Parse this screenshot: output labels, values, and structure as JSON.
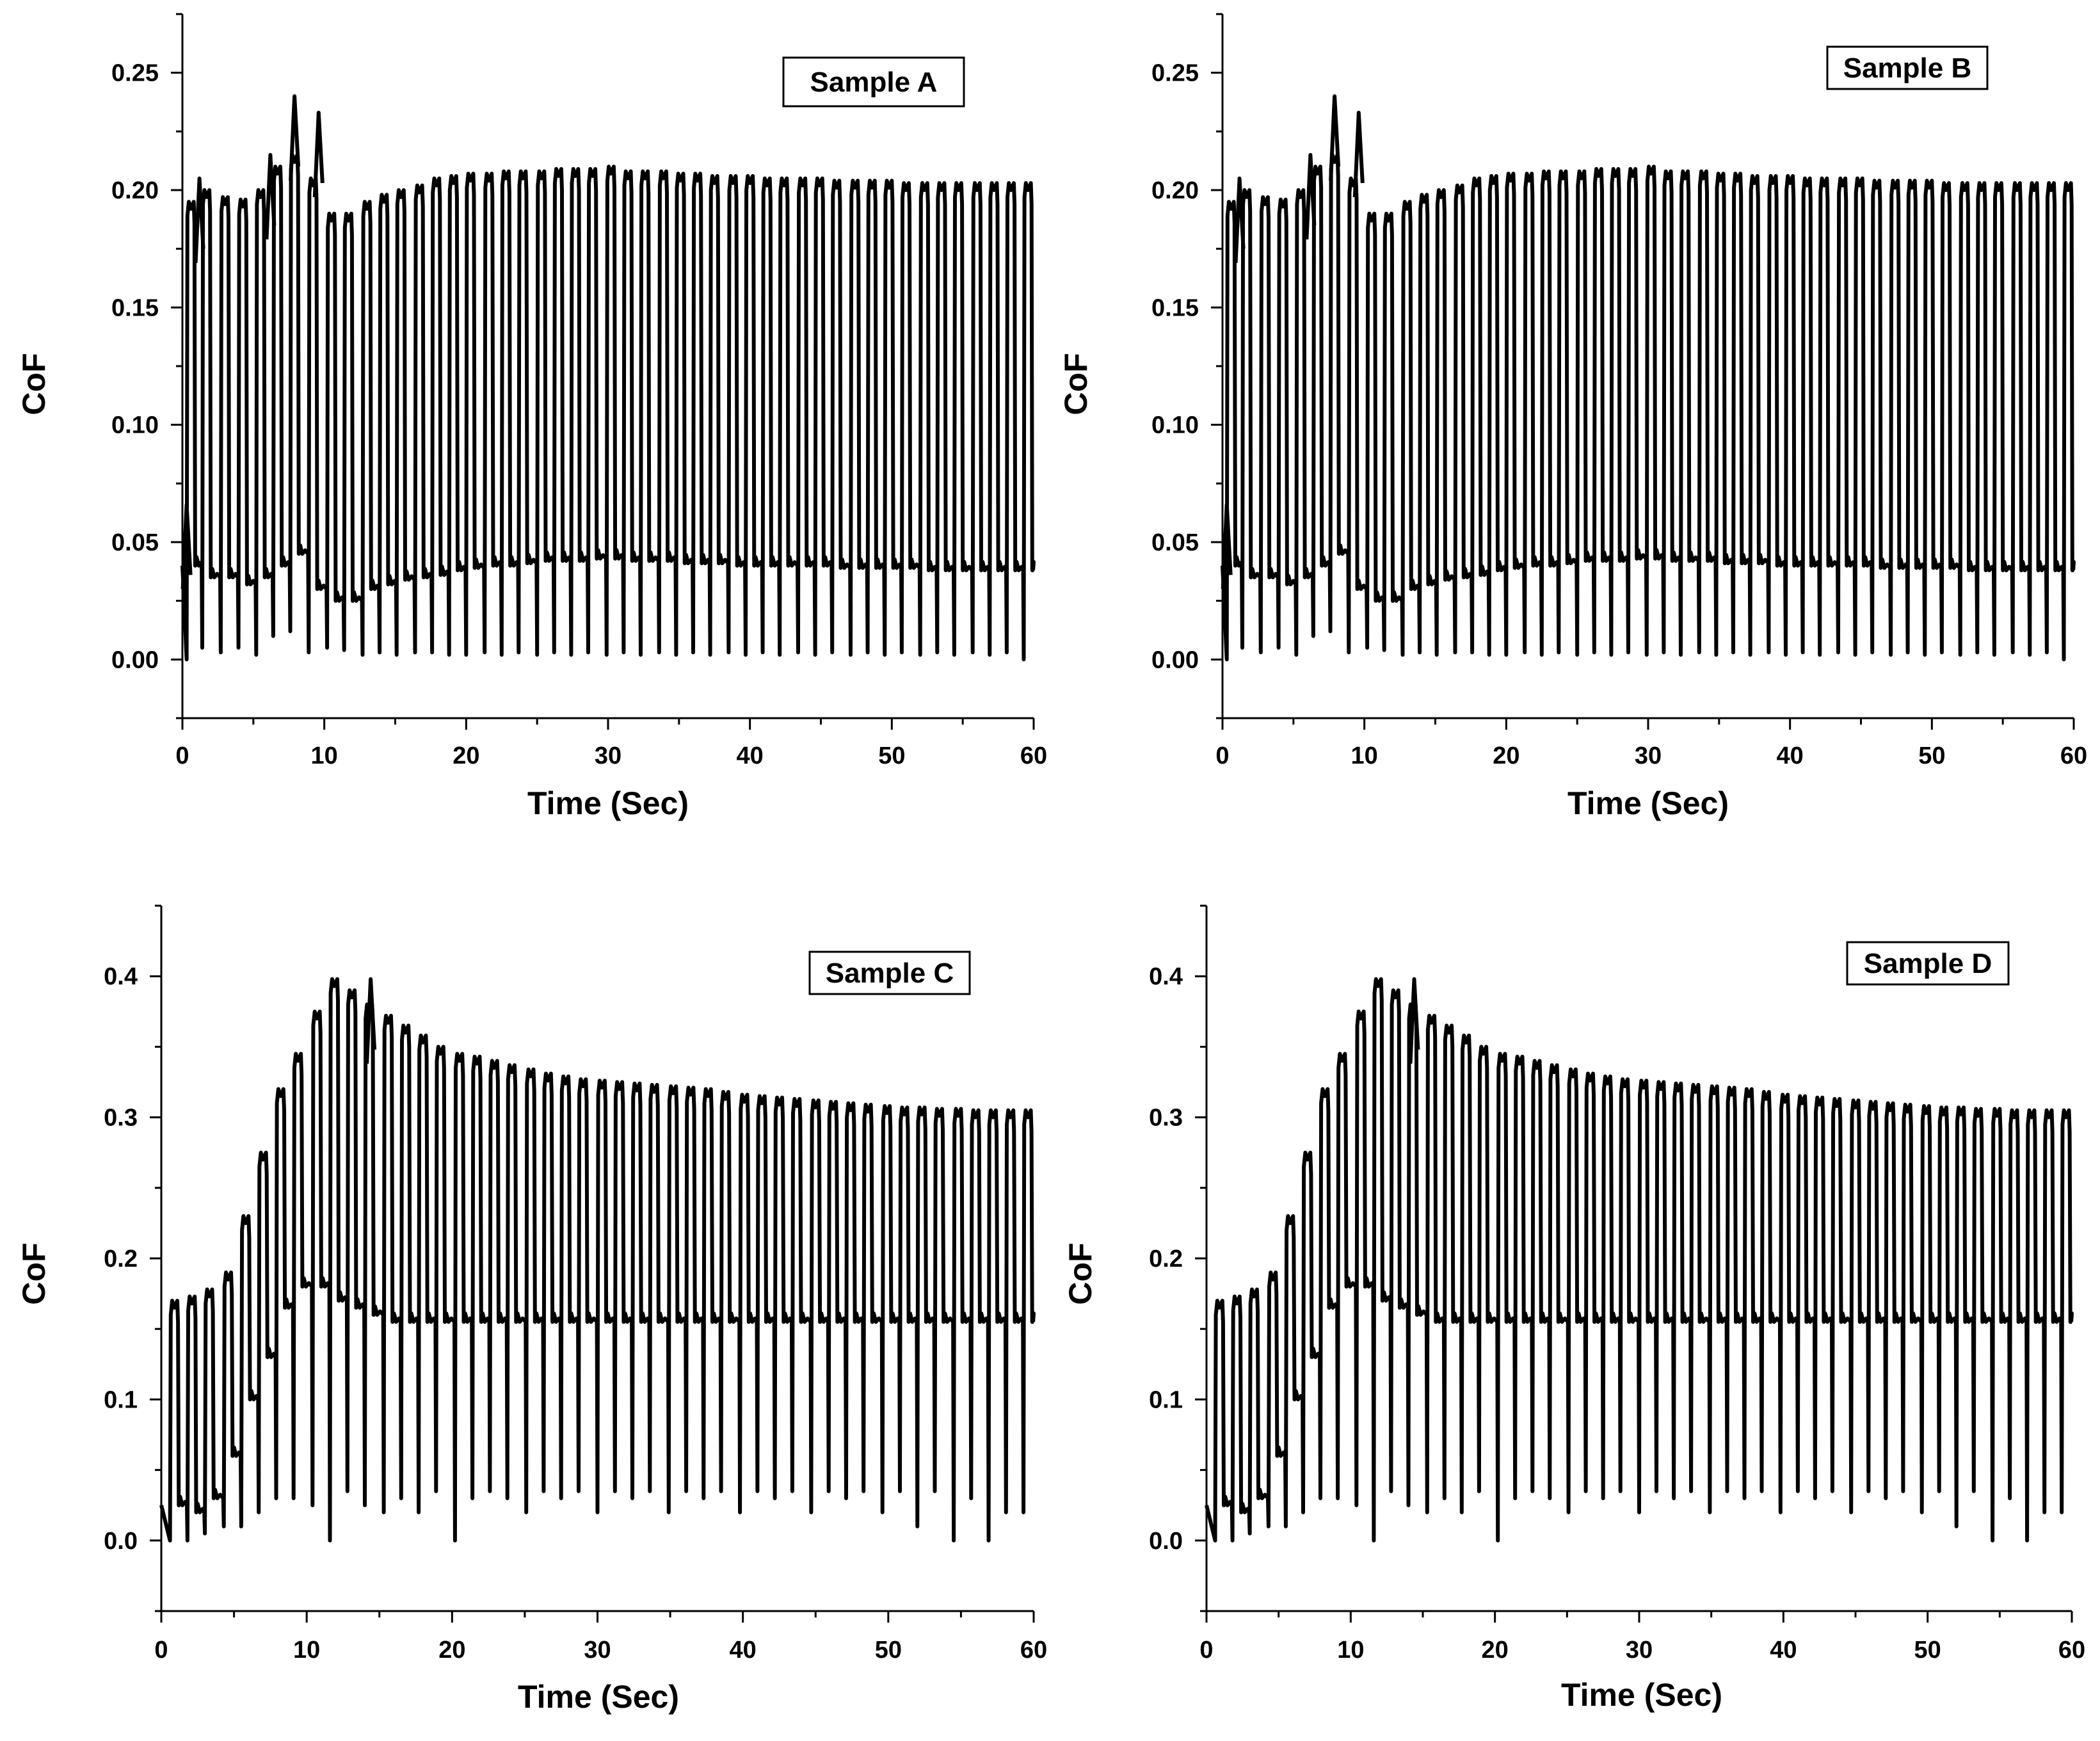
{
  "colors": {
    "line": "#000000",
    "background": "#ffffff",
    "axis": "#000000"
  },
  "chart_data": [
    {
      "type": "line",
      "title": "Sample A",
      "xlabel": "Time (Sec)",
      "ylabel": "CoF",
      "xlim": [
        0,
        60
      ],
      "ylim": [
        -0.025,
        0.275
      ],
      "xticks": [
        0,
        10,
        20,
        30,
        40,
        50,
        60
      ],
      "xtick_labels": [
        "0",
        "10",
        "20",
        "30",
        "40",
        "50",
        "60"
      ],
      "yticks": [
        0.0,
        0.05,
        0.1,
        0.15,
        0.2,
        0.25
      ],
      "ytick_labels": [
        "0.00",
        "0.05",
        "0.10",
        "0.15",
        "0.20",
        "0.25"
      ],
      "series": [
        {
          "name": "Sample A",
          "cycle_period_sec": 1.22,
          "cycle_start_times": [
            0.3,
            1.4,
            2.7,
            3.95,
            5.2,
            6.4,
            7.6,
            8.9,
            10.2,
            11.4,
            12.7,
            13.9,
            15.1,
            16.4,
            17.6,
            18.8,
            20.0,
            21.3,
            22.5,
            23.7,
            25.0,
            26.2,
            27.4,
            28.6,
            29.9,
            31.1,
            32.3,
            33.6,
            34.8,
            36.0,
            37.2,
            38.5,
            39.7,
            40.9,
            42.1,
            43.4,
            44.6,
            45.8,
            47.1,
            48.3,
            49.5,
            50.7,
            52.0,
            53.2,
            54.4,
            55.7,
            56.9,
            58.1,
            59.3
          ],
          "cycle_high_values": [
            0.195,
            0.2,
            0.197,
            0.196,
            0.2,
            0.21,
            0.215,
            0.205,
            0.19,
            0.19,
            0.195,
            0.198,
            0.2,
            0.202,
            0.205,
            0.206,
            0.207,
            0.207,
            0.208,
            0.208,
            0.208,
            0.209,
            0.209,
            0.209,
            0.21,
            0.208,
            0.208,
            0.208,
            0.207,
            0.207,
            0.206,
            0.206,
            0.206,
            0.205,
            0.205,
            0.205,
            0.205,
            0.204,
            0.204,
            0.204,
            0.204,
            0.203,
            0.203,
            0.203,
            0.203,
            0.203,
            0.203,
            0.203,
            0.203
          ],
          "cycle_low_values": [
            0.04,
            0.035,
            0.035,
            0.032,
            0.035,
            0.04,
            0.045,
            0.03,
            0.025,
            0.025,
            0.03,
            0.032,
            0.034,
            0.035,
            0.036,
            0.038,
            0.039,
            0.04,
            0.04,
            0.041,
            0.042,
            0.042,
            0.042,
            0.043,
            0.043,
            0.042,
            0.042,
            0.042,
            0.041,
            0.041,
            0.041,
            0.04,
            0.04,
            0.04,
            0.04,
            0.04,
            0.04,
            0.039,
            0.039,
            0.039,
            0.039,
            0.039,
            0.038,
            0.038,
            0.038,
            0.038,
            0.038,
            0.038,
            0.038
          ],
          "cycle_min_values": [
            0.0,
            0.005,
            0.003,
            0.005,
            0.002,
            0.01,
            0.012,
            0.003,
            0.005,
            0.004,
            0.002,
            0.003,
            0.002,
            0.003,
            0.003,
            0.002,
            0.002,
            0.003,
            0.002,
            0.003,
            0.002,
            0.003,
            0.002,
            0.003,
            0.002,
            0.003,
            0.002,
            0.003,
            0.002,
            0.003,
            0.002,
            0.003,
            0.002,
            0.003,
            0.002,
            0.003,
            0.002,
            0.003,
            0.002,
            0.003,
            0.002,
            0.003,
            0.002,
            0.003,
            0.002,
            0.003,
            0.002,
            0.003,
            0.0
          ],
          "peak_events": [
            [
              1.2,
              0.205
            ],
            [
              6.2,
              0.215
            ],
            [
              7.9,
              0.24
            ],
            [
              9.6,
              0.233
            ],
            [
              0.3,
              0.066
            ]
          ]
        }
      ]
    },
    {
      "type": "line",
      "title": "Sample B",
      "xlabel": "Time (Sec)",
      "ylabel": "CoF",
      "xlim": [
        0,
        60
      ],
      "ylim": [
        -0.025,
        0.275
      ],
      "xticks": [
        0,
        10,
        20,
        30,
        40,
        50,
        60
      ],
      "xtick_labels": [
        "0",
        "10",
        "20",
        "30",
        "40",
        "50",
        "60"
      ],
      "yticks": [
        0.0,
        0.05,
        0.1,
        0.15,
        0.2,
        0.25
      ],
      "ytick_labels": [
        "0.00",
        "0.05",
        "0.10",
        "0.15",
        "0.20",
        "0.25"
      ],
      "series": [
        {
          "name": "Sample B",
          "cycle_period_sec": 1.22,
          "cycle_start_times": [
            0.3,
            1.4,
            2.7,
            3.95,
            5.2,
            6.4,
            7.6,
            8.9,
            10.2,
            11.4,
            12.7,
            13.9,
            15.1,
            16.4,
            17.6,
            18.8,
            20.0,
            21.3,
            22.5,
            23.7,
            25.0,
            26.2,
            27.4,
            28.6,
            29.9,
            31.1,
            32.3,
            33.6,
            34.8,
            36.0,
            37.2,
            38.5,
            39.7,
            40.9,
            42.1,
            43.4,
            44.6,
            45.8,
            47.1,
            48.3,
            49.5,
            50.7,
            52.0,
            53.2,
            54.4,
            55.7,
            56.9,
            58.1,
            59.3
          ],
          "cycle_high_values": [
            0.195,
            0.2,
            0.197,
            0.196,
            0.2,
            0.21,
            0.215,
            0.205,
            0.19,
            0.19,
            0.195,
            0.198,
            0.2,
            0.202,
            0.205,
            0.206,
            0.207,
            0.207,
            0.208,
            0.208,
            0.208,
            0.209,
            0.209,
            0.209,
            0.21,
            0.208,
            0.208,
            0.208,
            0.207,
            0.207,
            0.206,
            0.206,
            0.206,
            0.205,
            0.205,
            0.205,
            0.205,
            0.204,
            0.204,
            0.204,
            0.204,
            0.203,
            0.203,
            0.203,
            0.203,
            0.203,
            0.203,
            0.203,
            0.203
          ],
          "cycle_low_values": [
            0.04,
            0.035,
            0.035,
            0.032,
            0.035,
            0.04,
            0.045,
            0.03,
            0.025,
            0.025,
            0.03,
            0.032,
            0.034,
            0.035,
            0.036,
            0.038,
            0.039,
            0.04,
            0.04,
            0.041,
            0.042,
            0.042,
            0.042,
            0.043,
            0.043,
            0.042,
            0.042,
            0.042,
            0.041,
            0.041,
            0.041,
            0.04,
            0.04,
            0.04,
            0.04,
            0.04,
            0.04,
            0.039,
            0.039,
            0.039,
            0.039,
            0.039,
            0.038,
            0.038,
            0.038,
            0.038,
            0.038,
            0.038,
            0.038
          ],
          "cycle_min_values": [
            0.0,
            0.005,
            0.003,
            0.005,
            0.002,
            0.01,
            0.012,
            0.003,
            0.005,
            0.004,
            0.002,
            0.003,
            0.002,
            0.003,
            0.003,
            0.002,
            0.002,
            0.003,
            0.002,
            0.003,
            0.002,
            0.003,
            0.002,
            0.003,
            0.002,
            0.003,
            0.002,
            0.003,
            0.002,
            0.003,
            0.002,
            0.003,
            0.002,
            0.003,
            0.002,
            0.003,
            0.002,
            0.003,
            0.002,
            0.003,
            0.002,
            0.003,
            0.002,
            0.003,
            0.002,
            0.003,
            0.002,
            0.003,
            0.0
          ],
          "peak_events": [
            [
              1.2,
              0.205
            ],
            [
              6.2,
              0.215
            ],
            [
              7.9,
              0.24
            ],
            [
              9.6,
              0.233
            ],
            [
              0.3,
              0.066
            ]
          ]
        }
      ]
    },
    {
      "type": "line",
      "title": "Sample C",
      "xlabel": "Time (Sec)",
      "ylabel": "CoF",
      "xlim": [
        0,
        60
      ],
      "ylim": [
        -0.05,
        0.45
      ],
      "xticks": [
        0,
        10,
        20,
        30,
        40,
        50,
        60
      ],
      "xtick_labels": [
        "0",
        "10",
        "20",
        "30",
        "40",
        "50",
        "60"
      ],
      "yticks": [
        0.0,
        0.1,
        0.2,
        0.3,
        0.4
      ],
      "ytick_labels": [
        "0.0",
        "0.1",
        "0.2",
        "0.3",
        "0.4"
      ],
      "series": [
        {
          "name": "Sample C",
          "cycle_period_sec": 1.22,
          "cycle_start_times": [
            0.6,
            1.8,
            3.0,
            4.3,
            5.5,
            6.7,
            7.9,
            9.1,
            10.4,
            11.6,
            12.8,
            14.0,
            15.3,
            16.5,
            17.7,
            18.9,
            20.2,
            21.4,
            22.6,
            23.8,
            25.1,
            26.3,
            27.5,
            28.7,
            30.0,
            31.2,
            32.4,
            33.6,
            34.9,
            36.1,
            37.3,
            38.5,
            39.8,
            41.0,
            42.2,
            43.4,
            44.7,
            45.9,
            47.1,
            48.3,
            49.6,
            50.8,
            52.0,
            53.2,
            54.5,
            55.7,
            56.9,
            58.1,
            59.3
          ],
          "cycle_high_values": [
            0.17,
            0.173,
            0.178,
            0.19,
            0.23,
            0.275,
            0.32,
            0.345,
            0.375,
            0.398,
            0.39,
            0.38,
            0.372,
            0.365,
            0.358,
            0.35,
            0.345,
            0.343,
            0.34,
            0.337,
            0.334,
            0.331,
            0.329,
            0.327,
            0.326,
            0.325,
            0.324,
            0.323,
            0.322,
            0.321,
            0.32,
            0.318,
            0.316,
            0.315,
            0.314,
            0.313,
            0.312,
            0.311,
            0.31,
            0.309,
            0.308,
            0.307,
            0.307,
            0.306,
            0.306,
            0.305,
            0.305,
            0.305,
            0.305
          ],
          "cycle_low_values": [
            0.025,
            0.02,
            0.03,
            0.06,
            0.1,
            0.13,
            0.165,
            0.18,
            0.18,
            0.17,
            0.165,
            0.16,
            0.155,
            0.155,
            0.155,
            0.155,
            0.155,
            0.155,
            0.155,
            0.155,
            0.155,
            0.155,
            0.155,
            0.155,
            0.155,
            0.155,
            0.155,
            0.155,
            0.155,
            0.155,
            0.155,
            0.155,
            0.155,
            0.155,
            0.155,
            0.155,
            0.155,
            0.155,
            0.155,
            0.155,
            0.155,
            0.155,
            0.155,
            0.155,
            0.155,
            0.155,
            0.155,
            0.155,
            0.155
          ],
          "cycle_min_values": [
            0.0,
            0.0,
            0.005,
            0.01,
            0.01,
            0.02,
            0.03,
            0.03,
            0.025,
            0.0,
            0.035,
            0.025,
            0.02,
            0.03,
            0.02,
            0.035,
            0.0,
            0.03,
            0.035,
            0.03,
            0.02,
            0.035,
            0.03,
            0.035,
            0.02,
            0.035,
            0.03,
            0.035,
            0.02,
            0.035,
            0.03,
            0.035,
            0.02,
            0.035,
            0.03,
            0.035,
            0.02,
            0.035,
            0.03,
            0.035,
            0.02,
            0.035,
            0.01,
            0.035,
            0.0,
            0.03,
            0.0,
            0.02,
            0.02
          ],
          "peak_events": [
            [
              14.4,
              0.398
            ]
          ]
        }
      ]
    },
    {
      "type": "line",
      "title": "Sample D",
      "xlabel": "Time (Sec)",
      "ylabel": "CoF",
      "xlim": [
        0,
        60
      ],
      "ylim": [
        -0.05,
        0.45
      ],
      "xticks": [
        0,
        10,
        20,
        30,
        40,
        50,
        60
      ],
      "xtick_labels": [
        "0",
        "10",
        "20",
        "30",
        "40",
        "50",
        "60"
      ],
      "yticks": [
        0.0,
        0.1,
        0.2,
        0.3,
        0.4
      ],
      "ytick_labels": [
        "0.0",
        "0.1",
        "0.2",
        "0.3",
        "0.4"
      ],
      "series": [
        {
          "name": "Sample D",
          "cycle_period_sec": 1.22,
          "cycle_start_times": [
            0.6,
            1.8,
            3.0,
            4.3,
            5.5,
            6.7,
            7.9,
            9.1,
            10.4,
            11.6,
            12.8,
            14.0,
            15.3,
            16.5,
            17.7,
            18.9,
            20.2,
            21.4,
            22.6,
            23.8,
            25.1,
            26.3,
            27.5,
            28.7,
            30.0,
            31.2,
            32.4,
            33.6,
            34.9,
            36.1,
            37.3,
            38.5,
            39.8,
            41.0,
            42.2,
            43.4,
            44.7,
            45.9,
            47.1,
            48.3,
            49.6,
            50.8,
            52.0,
            53.2,
            54.5,
            55.7,
            56.9,
            58.1,
            59.3
          ],
          "cycle_high_values": [
            0.17,
            0.173,
            0.178,
            0.19,
            0.23,
            0.275,
            0.32,
            0.345,
            0.375,
            0.398,
            0.39,
            0.38,
            0.372,
            0.365,
            0.358,
            0.35,
            0.345,
            0.343,
            0.34,
            0.337,
            0.334,
            0.331,
            0.329,
            0.327,
            0.326,
            0.325,
            0.324,
            0.323,
            0.322,
            0.321,
            0.32,
            0.318,
            0.316,
            0.315,
            0.314,
            0.313,
            0.312,
            0.311,
            0.31,
            0.309,
            0.308,
            0.307,
            0.307,
            0.306,
            0.306,
            0.305,
            0.305,
            0.305,
            0.305
          ],
          "cycle_low_values": [
            0.025,
            0.02,
            0.03,
            0.06,
            0.1,
            0.13,
            0.165,
            0.18,
            0.18,
            0.17,
            0.165,
            0.16,
            0.155,
            0.155,
            0.155,
            0.155,
            0.155,
            0.155,
            0.155,
            0.155,
            0.155,
            0.155,
            0.155,
            0.155,
            0.155,
            0.155,
            0.155,
            0.155,
            0.155,
            0.155,
            0.155,
            0.155,
            0.155,
            0.155,
            0.155,
            0.155,
            0.155,
            0.155,
            0.155,
            0.155,
            0.155,
            0.155,
            0.155,
            0.155,
            0.155,
            0.155,
            0.155,
            0.155,
            0.155
          ],
          "cycle_min_values": [
            0.0,
            0.0,
            0.005,
            0.01,
            0.01,
            0.02,
            0.03,
            0.03,
            0.025,
            0.0,
            0.035,
            0.025,
            0.02,
            0.03,
            0.02,
            0.035,
            0.0,
            0.03,
            0.035,
            0.03,
            0.02,
            0.035,
            0.03,
            0.035,
            0.02,
            0.035,
            0.03,
            0.035,
            0.02,
            0.035,
            0.03,
            0.035,
            0.02,
            0.035,
            0.03,
            0.035,
            0.02,
            0.035,
            0.03,
            0.035,
            0.02,
            0.035,
            0.01,
            0.035,
            0.0,
            0.03,
            0.0,
            0.02,
            0.02
          ],
          "peak_events": [
            [
              14.4,
              0.398
            ]
          ]
        }
      ]
    }
  ]
}
